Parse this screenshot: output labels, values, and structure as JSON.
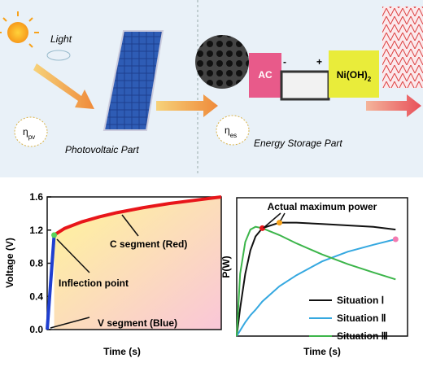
{
  "schematic": {
    "light": "Light",
    "eta_pv": {
      "symbol": "η",
      "sub": "pv"
    },
    "pv_part": "Photovoltaic Part",
    "eta_es": {
      "symbol": "η",
      "sub": "es"
    },
    "es_part": "Energy Storage Part",
    "ac": "AC",
    "minus": "-",
    "plus": "+",
    "nioh": {
      "main": "Ni(OH)",
      "sub": "2"
    }
  },
  "chart_data": [
    {
      "type": "line",
      "xlabel": "Time (s)",
      "ylabel": "Voltage (V)",
      "xlim": [
        0,
        1
      ],
      "ylim": [
        0,
        1.6
      ],
      "yticks": [
        {
          "value": 0,
          "label": "0.0"
        },
        {
          "value": 0.4,
          "label": "0.4"
        },
        {
          "value": 0.8,
          "label": "0.8"
        },
        {
          "value": 1.2,
          "label": "1.2"
        },
        {
          "value": 1.6,
          "label": "1.6"
        }
      ],
      "series": [
        {
          "color": "#1f3fd0",
          "x": [
            0,
            0.04
          ],
          "values": [
            0,
            1.14
          ]
        },
        {
          "color": "#e8161a",
          "x": [
            0.04,
            0.1,
            0.2,
            0.3,
            0.4,
            0.55,
            0.7,
            0.85,
            1.0
          ],
          "values": [
            1.14,
            1.22,
            1.3,
            1.36,
            1.41,
            1.47,
            1.52,
            1.56,
            1.6
          ]
        }
      ],
      "annotations": [
        "C segment (Red)",
        "Inflection point",
        "V segment (Blue)"
      ]
    },
    {
      "type": "line",
      "xlabel": "Time (s)",
      "ylabel": "P(W)",
      "xlim": [
        0,
        1
      ],
      "ylim": [
        0,
        1
      ],
      "x": [
        0,
        0.02,
        0.05,
        0.08,
        0.11,
        0.15,
        0.25,
        0.35,
        0.5,
        0.65,
        0.8,
        0.93
      ],
      "series": [
        {
          "name": "Situation Ⅰ",
          "color": "#111111",
          "values": [
            0,
            0.2,
            0.45,
            0.62,
            0.72,
            0.78,
            0.82,
            0.82,
            0.81,
            0.8,
            0.79,
            0.77
          ]
        },
        {
          "name": "Situation Ⅱ",
          "color": "#35a8e0",
          "values": [
            0,
            0.04,
            0.1,
            0.15,
            0.19,
            0.25,
            0.36,
            0.44,
            0.54,
            0.61,
            0.66,
            0.7
          ]
        },
        {
          "name": "Situation Ⅲ",
          "color": "#3cb54a",
          "values": [
            0,
            0.45,
            0.68,
            0.77,
            0.79,
            0.78,
            0.73,
            0.67,
            0.59,
            0.52,
            0.46,
            0.41
          ]
        }
      ],
      "annotations": [
        "Actual maximum power"
      ]
    }
  ]
}
